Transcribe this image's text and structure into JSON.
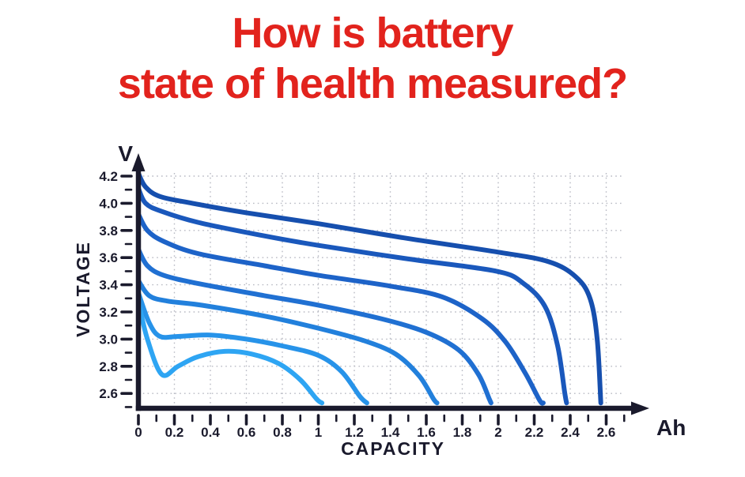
{
  "title": {
    "line1": "How is battery",
    "line2": "state of health measured?"
  },
  "colors": {
    "title_red": "#e2231d",
    "axis_navy": "#1a1a2c",
    "grid_gray": "#b8bac3",
    "background": "#ffffff"
  },
  "chart_data": {
    "type": "line",
    "title": "",
    "xlabel": "CAPACITY",
    "ylabel": "VOLTAGE",
    "x_unit": "Ah",
    "y_unit": "V",
    "xlim": [
      0,
      2.7
    ],
    "ylim": [
      2.5,
      4.25
    ],
    "grid": {
      "on": true,
      "step": 0.2,
      "style": "dotted"
    },
    "x_axis": {
      "major_ticks": [
        {
          "label": "0",
          "value": 0
        },
        {
          "label": "0.2",
          "value": 0.2
        },
        {
          "label": "0.4",
          "value": 0.4
        },
        {
          "label": "0.6",
          "value": 0.6
        },
        {
          "label": "0.8",
          "value": 0.8
        },
        {
          "label": "1",
          "value": 1
        },
        {
          "label": "1.2",
          "value": 1.2
        },
        {
          "label": "1.4",
          "value": 1.4
        },
        {
          "label": "1.6",
          "value": 1.6
        },
        {
          "label": "1.8",
          "value": 1.8
        },
        {
          "label": "2",
          "value": 2
        },
        {
          "label": "2.2",
          "value": 2.2
        },
        {
          "label": "2.4",
          "value": 2.4
        },
        {
          "label": "2.6",
          "value": 2.6
        }
      ],
      "minor_step": 0.1,
      "minor_max": 2.7
    },
    "y_axis": {
      "major_ticks": [
        {
          "label": "2.6",
          "value": 2.6
        },
        {
          "label": "2.8",
          "value": 2.8
        },
        {
          "label": "3.0",
          "value": 3.0
        },
        {
          "label": "3.2",
          "value": 3.2
        },
        {
          "label": "3.4",
          "value": 3.4
        },
        {
          "label": "3.6",
          "value": 3.6
        },
        {
          "label": "3.8",
          "value": 3.8
        },
        {
          "label": "4.0",
          "value": 4.0
        },
        {
          "label": "4.2",
          "value": 4.2
        }
      ],
      "minor_step": 0.1,
      "minor_min": 2.5,
      "minor_max": 4.1
    },
    "legend": "none",
    "series": [
      {
        "id": "discharge-curve-1",
        "color": "#164fae",
        "points": [
          [
            0,
            4.22
          ],
          [
            0.04,
            4.12
          ],
          [
            0.12,
            4.05
          ],
          [
            0.3,
            4.0
          ],
          [
            0.6,
            3.93
          ],
          [
            1.0,
            3.85
          ],
          [
            1.5,
            3.74
          ],
          [
            2.0,
            3.64
          ],
          [
            2.28,
            3.57
          ],
          [
            2.43,
            3.46
          ],
          [
            2.51,
            3.3
          ],
          [
            2.55,
            3.0
          ],
          [
            2.57,
            2.53
          ]
        ]
      },
      {
        "id": "discharge-curve-2",
        "color": "#1a58bc",
        "points": [
          [
            0,
            4.11
          ],
          [
            0.04,
            4.0
          ],
          [
            0.13,
            3.94
          ],
          [
            0.33,
            3.86
          ],
          [
            0.7,
            3.76
          ],
          [
            1.0,
            3.69
          ],
          [
            1.5,
            3.59
          ],
          [
            1.99,
            3.5
          ],
          [
            2.14,
            3.41
          ],
          [
            2.26,
            3.24
          ],
          [
            2.33,
            2.95
          ],
          [
            2.37,
            2.6
          ],
          [
            2.38,
            2.53
          ]
        ]
      },
      {
        "id": "discharge-curve-3",
        "color": "#1d63c8",
        "points": [
          [
            0,
            3.92
          ],
          [
            0.05,
            3.8
          ],
          [
            0.14,
            3.72
          ],
          [
            0.33,
            3.63
          ],
          [
            0.7,
            3.54
          ],
          [
            1.0,
            3.47
          ],
          [
            1.4,
            3.39
          ],
          [
            1.69,
            3.31
          ],
          [
            1.91,
            3.15
          ],
          [
            2.04,
            2.98
          ],
          [
            2.15,
            2.75
          ],
          [
            2.23,
            2.55
          ],
          [
            2.25,
            2.53
          ]
        ]
      },
      {
        "id": "discharge-curve-4",
        "color": "#2070d2",
        "points": [
          [
            0,
            3.66
          ],
          [
            0.05,
            3.54
          ],
          [
            0.14,
            3.47
          ],
          [
            0.33,
            3.41
          ],
          [
            0.7,
            3.32
          ],
          [
            1.0,
            3.25
          ],
          [
            1.35,
            3.15
          ],
          [
            1.6,
            3.05
          ],
          [
            1.78,
            2.92
          ],
          [
            1.89,
            2.74
          ],
          [
            1.95,
            2.56
          ],
          [
            1.96,
            2.53
          ]
        ]
      },
      {
        "id": "discharge-curve-5",
        "color": "#2280dc",
        "points": [
          [
            0,
            3.43
          ],
          [
            0.06,
            3.32
          ],
          [
            0.16,
            3.28
          ],
          [
            0.35,
            3.25
          ],
          [
            0.7,
            3.17
          ],
          [
            1.0,
            3.08
          ],
          [
            1.25,
            2.99
          ],
          [
            1.43,
            2.89
          ],
          [
            1.56,
            2.73
          ],
          [
            1.64,
            2.56
          ],
          [
            1.66,
            2.53
          ]
        ]
      },
      {
        "id": "discharge-curve-6",
        "color": "#2793e9",
        "points": [
          [
            0,
            3.34
          ],
          [
            0.06,
            3.12
          ],
          [
            0.12,
            3.02
          ],
          [
            0.22,
            3.02
          ],
          [
            0.4,
            3.03
          ],
          [
            0.6,
            3.0
          ],
          [
            0.8,
            2.95
          ],
          [
            1.0,
            2.88
          ],
          [
            1.13,
            2.76
          ],
          [
            1.23,
            2.58
          ],
          [
            1.27,
            2.53
          ]
        ]
      },
      {
        "id": "discharge-curve-7",
        "color": "#2ea5f3",
        "points": [
          [
            0,
            3.28
          ],
          [
            0.05,
            3.0
          ],
          [
            0.13,
            2.74
          ],
          [
            0.22,
            2.8
          ],
          [
            0.33,
            2.87
          ],
          [
            0.48,
            2.91
          ],
          [
            0.63,
            2.89
          ],
          [
            0.78,
            2.82
          ],
          [
            0.9,
            2.7
          ],
          [
            0.99,
            2.56
          ],
          [
            1.02,
            2.53
          ]
        ]
      }
    ]
  }
}
